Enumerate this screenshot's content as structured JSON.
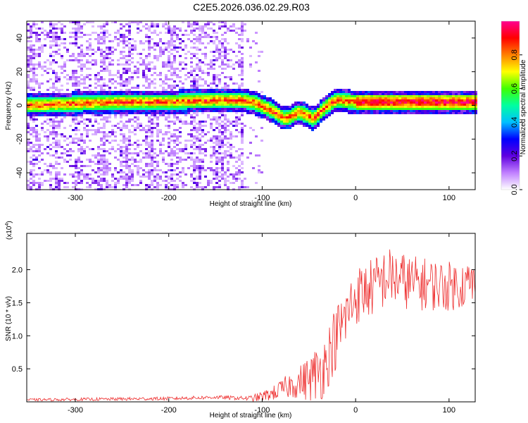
{
  "title": "C2E5.2026.036.02.29.R03",
  "chart_data": [
    {
      "type": "heatmap",
      "name": "spectrogram",
      "xlabel": "Height of straight line (km)",
      "ylabel": "Frequency (Hz)",
      "xlim": [
        -352,
        128
      ],
      "ylim": [
        -50,
        50
      ],
      "xticks": [
        -300,
        -200,
        -100,
        0,
        100
      ],
      "xtick_labels": [
        "-300",
        "-200",
        "-100",
        "0",
        "100"
      ],
      "yticks": [
        -40,
        -20,
        0,
        20,
        40
      ],
      "ytick_labels": [
        "-40",
        "-20",
        "0",
        "20",
        "40"
      ],
      "colorbar": {
        "label": "Normalized spectral amplitude",
        "range": [
          0.0,
          1.0
        ],
        "ticks": [
          0.0,
          0.2,
          0.4,
          0.6,
          0.8
        ],
        "tick_labels": [
          "0.0",
          "0.2",
          "0.4",
          "0.6",
          "0.8"
        ],
        "colors": [
          "#ffffff",
          "#c080ff",
          "#6000e0",
          "#0000ff",
          "#00c0ff",
          "#00ffa0",
          "#40ff00",
          "#ffff00",
          "#ff8000",
          "#ff0000",
          "#ff0090"
        ]
      },
      "ridge": {
        "description_points_x": [
          -352,
          -300,
          -250,
          -200,
          -150,
          -125,
          -110,
          -90,
          -75,
          -60,
          -45,
          -30,
          -20,
          0,
          50,
          128
        ],
        "description_points_y": [
          0,
          1,
          2,
          2,
          3,
          3,
          2,
          -3,
          -8,
          -4,
          -8,
          0,
          3,
          2,
          2,
          2
        ]
      }
    },
    {
      "type": "line",
      "name": "snr",
      "xlabel": "Height of straight line (km)",
      "ylabel": "SNR (10 * v/v)",
      "multiplier_label": "(x10",
      "multiplier_exponent": "4",
      "multiplier_close": ")",
      "xlim": [
        -352,
        128
      ],
      "ylim": [
        0,
        2.55
      ],
      "xticks": [
        -300,
        -200,
        -100,
        0,
        100
      ],
      "xtick_labels": [
        "-300",
        "-200",
        "-100",
        "0",
        "100"
      ],
      "yticks": [
        0.5,
        1.0,
        1.5,
        2.0
      ],
      "ytick_labels": [
        "0.5",
        "1.0",
        "1.5",
        "2.0"
      ],
      "color": "#ee3030",
      "envelope_x": [
        -352,
        -200,
        -150,
        -110,
        -90,
        -70,
        -50,
        -35,
        -25,
        -15,
        0,
        20,
        35,
        60,
        100,
        128
      ],
      "envelope_y": [
        0.03,
        0.05,
        0.07,
        0.05,
        0.12,
        0.25,
        0.35,
        0.5,
        0.85,
        1.15,
        1.6,
        1.75,
        1.9,
        1.8,
        1.75,
        1.8
      ],
      "noise_amp_x": [
        -352,
        -120,
        -90,
        -60,
        -40,
        -20,
        0,
        30,
        128
      ],
      "noise_amp_y": [
        0.02,
        0.03,
        0.1,
        0.25,
        0.45,
        0.5,
        0.45,
        0.45,
        0.35
      ]
    }
  ]
}
